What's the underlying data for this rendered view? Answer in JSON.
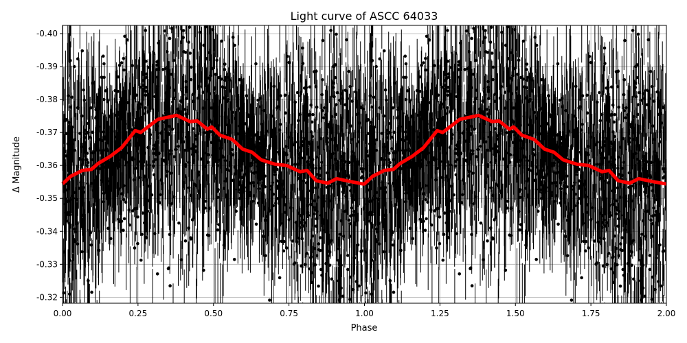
{
  "chart_data": {
    "type": "scatter",
    "title": "Light curve of ASCC 64033",
    "xlabel": "Phase",
    "ylabel": "Δ Magnitude",
    "xlim": [
      0,
      2
    ],
    "ylim": [
      -0.3182,
      -0.4025
    ],
    "y_inverted": true,
    "grid": true,
    "x_ticks": [
      "0.00",
      "0.25",
      "0.50",
      "0.75",
      "1.00",
      "1.25",
      "1.50",
      "1.75",
      "2.00"
    ],
    "y_ticks": [
      "-0.40",
      "-0.39",
      "-0.38",
      "-0.37",
      "-0.36",
      "-0.35",
      "-0.34",
      "-0.33",
      "-0.32"
    ],
    "series": [
      {
        "type": "errorbar-scatter",
        "color": "#000000",
        "description_visible": "dense black points with vertical error bars"
      },
      {
        "type": "line",
        "color": "#ff0000",
        "x": [
          0.0,
          0.027,
          0.066,
          0.096,
          0.118,
          0.157,
          0.196,
          0.241,
          0.259,
          0.316,
          0.378,
          0.423,
          0.446,
          0.48,
          0.494,
          0.521,
          0.562,
          0.596,
          0.628,
          0.658,
          0.703,
          0.742,
          0.787,
          0.81,
          0.84,
          0.878,
          0.908,
          0.96,
          0.994,
          1.0,
          1.027,
          1.066,
          1.096,
          1.118,
          1.157,
          1.196,
          1.241,
          1.259,
          1.316,
          1.378,
          1.423,
          1.446,
          1.48,
          1.494,
          1.521,
          1.562,
          1.596,
          1.628,
          1.658,
          1.703,
          1.742,
          1.787,
          1.81,
          1.84,
          1.878,
          1.908,
          1.96,
          2.0
        ],
        "y": [
          -0.3544,
          -0.3567,
          -0.3585,
          -0.3588,
          -0.3606,
          -0.3627,
          -0.3654,
          -0.3706,
          -0.37,
          -0.374,
          -0.3752,
          -0.3733,
          -0.3735,
          -0.371,
          -0.3717,
          -0.3692,
          -0.3679,
          -0.365,
          -0.364,
          -0.3617,
          -0.3604,
          -0.36,
          -0.3581,
          -0.3585,
          -0.3554,
          -0.3546,
          -0.356,
          -0.355,
          -0.3544,
          -0.3544,
          -0.3567,
          -0.3585,
          -0.3588,
          -0.3606,
          -0.3627,
          -0.3654,
          -0.3706,
          -0.37,
          -0.374,
          -0.3752,
          -0.3733,
          -0.3735,
          -0.371,
          -0.3717,
          -0.3692,
          -0.3679,
          -0.365,
          -0.364,
          -0.3617,
          -0.3604,
          -0.36,
          -0.3581,
          -0.3585,
          -0.3554,
          -0.3546,
          -0.356,
          -0.355,
          -0.3544
        ]
      }
    ]
  }
}
